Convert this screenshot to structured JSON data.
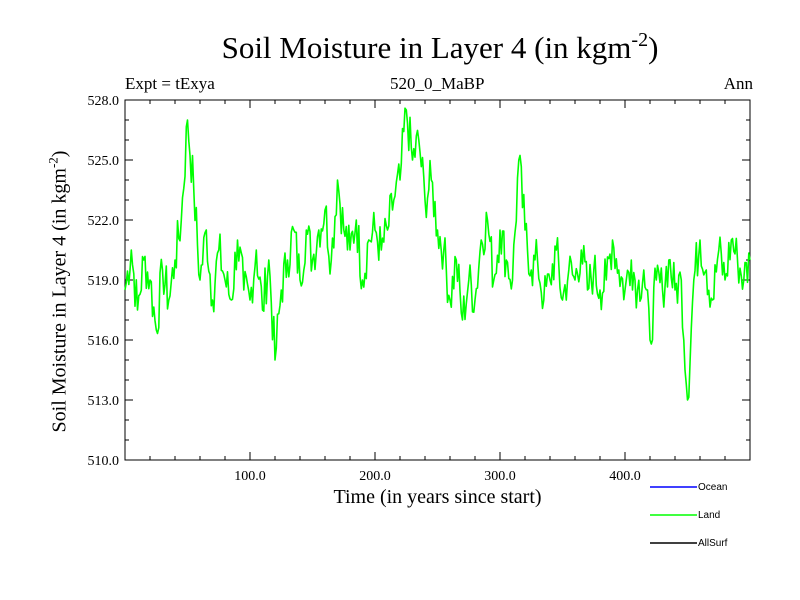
{
  "chart_data": {
    "type": "line",
    "title": "Soil Moisture in Layer 4 (in kgm",
    "title_sup": "-2",
    "title_end": ")",
    "subtitle_left": "Expt = tExya",
    "subtitle_center": "520_0_MaBP",
    "subtitle_right": "Ann",
    "xlabel": "Time (in years since start)",
    "ylabel": "Soil Moisture in Layer 4 (in kgm",
    "ylabel_sup": "-2",
    "ylabel_end": ")",
    "xlim": [
      0,
      500
    ],
    "ylim": [
      510.0,
      528.0
    ],
    "xticks": [
      100,
      200,
      300,
      400
    ],
    "xtick_labels": [
      "100.0",
      "200.0",
      "300.0",
      "400.0"
    ],
    "yticks": [
      510,
      513,
      516,
      519,
      522,
      525,
      528
    ],
    "ytick_labels": [
      "510.0",
      "513.0",
      "516.0",
      "519.0",
      "522.0",
      "525.0",
      "528.0"
    ],
    "series": [
      {
        "name": "Ocean",
        "color": "#0000ff",
        "values": []
      },
      {
        "name": "Land",
        "color": "#00ff00",
        "x": [
          0,
          5,
          10,
          15,
          20,
          25,
          30,
          35,
          40,
          45,
          50,
          55,
          60,
          65,
          70,
          75,
          80,
          85,
          90,
          95,
          100,
          105,
          110,
          115,
          120,
          125,
          130,
          135,
          140,
          145,
          150,
          155,
          160,
          165,
          170,
          175,
          180,
          185,
          190,
          195,
          200,
          205,
          210,
          215,
          220,
          225,
          230,
          235,
          240,
          245,
          250,
          255,
          260,
          265,
          270,
          275,
          280,
          285,
          290,
          295,
          300,
          305,
          310,
          315,
          320,
          325,
          330,
          335,
          340,
          345,
          350,
          355,
          360,
          365,
          370,
          375,
          380,
          385,
          390,
          395,
          400,
          405,
          410,
          415,
          420,
          425,
          430,
          435,
          440,
          445,
          450,
          455,
          460,
          465,
          470,
          475,
          480,
          485,
          490,
          495,
          500
        ],
        "values": [
          518.5,
          520.5,
          517.5,
          520.0,
          519.0,
          516.5,
          519.5,
          518.0,
          520.0,
          522.0,
          527.0,
          523.5,
          519.0,
          521.5,
          518.0,
          520.5,
          519.0,
          518.0,
          521.0,
          518.5,
          518.0,
          520.5,
          517.5,
          520.0,
          515.0,
          518.5,
          520.0,
          521.5,
          519.0,
          521.5,
          520.0,
          521.5,
          522.5,
          520.0,
          524.0,
          521.5,
          520.5,
          522.0,
          519.0,
          521.0,
          521.5,
          520.5,
          521.5,
          523.0,
          524.0,
          527.5,
          525.0,
          526.0,
          523.0,
          524.0,
          521.5,
          520.5,
          518.0,
          520.0,
          517.0,
          519.0,
          518.0,
          521.0,
          522.0,
          519.0,
          521.5,
          520.0,
          519.0,
          525.0,
          521.5,
          519.5,
          520.0,
          518.0,
          519.0,
          520.5,
          518.0,
          519.5,
          519.0,
          520.5,
          518.5,
          519.5,
          518.5,
          519.0,
          521.0,
          519.5,
          518.5,
          520.0,
          518.5,
          519.5,
          516.0,
          519.0,
          518.5,
          520.0,
          518.5,
          519.0,
          513.0,
          519.0,
          521.0,
          519.5,
          518.0,
          520.5,
          519.0,
          521.0,
          520.0,
          519.0,
          520.0
        ]
      },
      {
        "name": "AllSurf",
        "color": "#000000",
        "values": []
      }
    ],
    "legend_position": "bottom-right",
    "grid": false
  }
}
